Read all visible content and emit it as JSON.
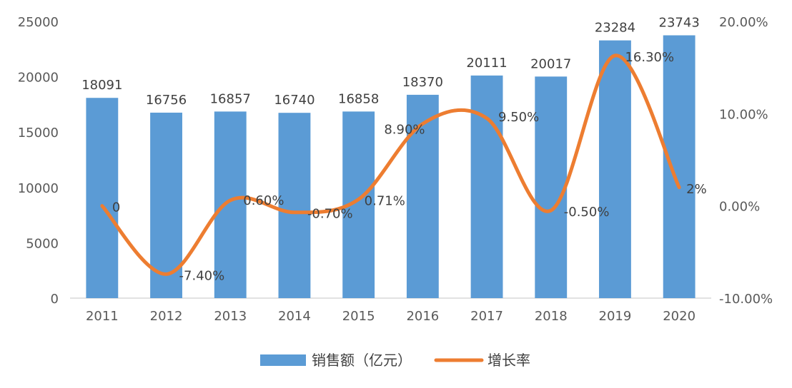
{
  "chart_data": {
    "type": "bar",
    "categories": [
      "2011",
      "2012",
      "2013",
      "2014",
      "2015",
      "2016",
      "2017",
      "2018",
      "2019",
      "2020"
    ],
    "series": [
      {
        "name": "销售额（亿元）",
        "type": "bar",
        "axis": "left",
        "color": "#5B9BD5",
        "values": [
          18091,
          16756,
          16857,
          16740,
          16858,
          18370,
          20111,
          20017,
          23284,
          23743
        ],
        "labels": [
          "18091",
          "16756",
          "16857",
          "16740",
          "16858",
          "18370",
          "20111",
          "20017",
          "23284",
          "23743"
        ]
      },
      {
        "name": "增长率",
        "type": "line",
        "axis": "right",
        "color": "#ED7D31",
        "values": [
          0,
          -7.4,
          0.6,
          -0.7,
          0.71,
          8.9,
          9.5,
          -0.5,
          16.3,
          2
        ],
        "labels": [
          "0",
          "-7.40%",
          "0.60%",
          "-0.70%",
          "0.71%",
          "8.90%",
          "9.50%",
          "-0.50%",
          "16.30%",
          "2%"
        ]
      }
    ],
    "y_left": {
      "min": 0,
      "max": 25000,
      "ticks": [
        0,
        5000,
        10000,
        15000,
        20000,
        25000
      ],
      "tick_labels": [
        "0",
        "5000",
        "10000",
        "15000",
        "20000",
        "25000"
      ]
    },
    "y_right": {
      "min": -10,
      "max": 20,
      "ticks": [
        -10,
        0,
        10,
        20
      ],
      "tick_labels": [
        "-10.00%",
        "0.00%",
        "10.00%",
        "20.00%"
      ]
    },
    "legend": {
      "position": "bottom",
      "items": [
        "销售额（亿元）",
        "增长率"
      ]
    },
    "grid": false,
    "title": "",
    "xlabel": "",
    "ylabel": ""
  }
}
